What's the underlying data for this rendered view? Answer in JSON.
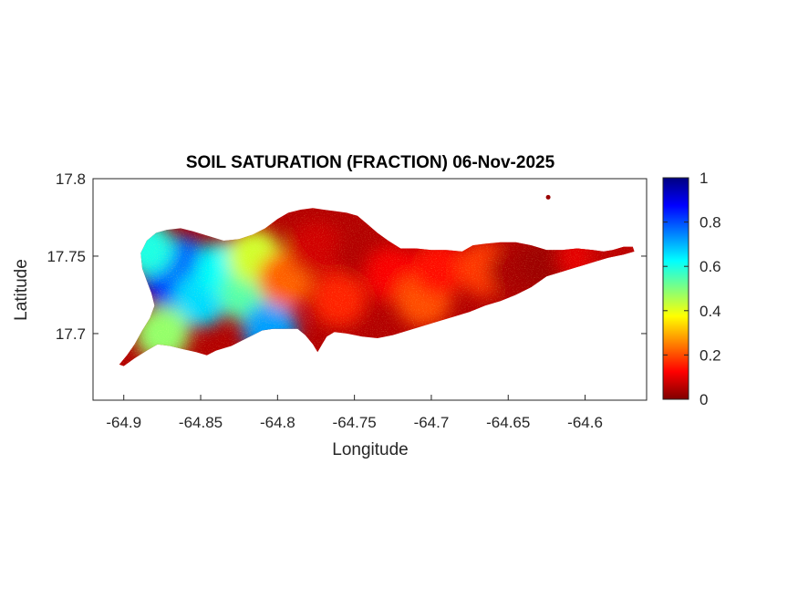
{
  "chart_data": {
    "type": "heatmap",
    "title": "SOIL SATURATION (FRACTION) 06-Nov-2025",
    "xlabel": "Longitude",
    "ylabel": "Latitude",
    "xlim": [
      -64.92,
      -64.56
    ],
    "ylim": [
      17.657,
      17.8
    ],
    "x_ticks": [
      -64.9,
      -64.85,
      -64.8,
      -64.75,
      -64.7,
      -64.65,
      -64.6
    ],
    "x_tick_labels": [
      "-64.9",
      "-64.85",
      "-64.8",
      "-64.75",
      "-64.7",
      "-64.65",
      "-64.6"
    ],
    "y_ticks": [
      17.7,
      17.75,
      17.8
    ],
    "y_tick_labels": [
      "17.7",
      "17.75",
      "17.8"
    ],
    "colormap": "jet",
    "colorbar": {
      "range": [
        0,
        1
      ],
      "ticks": [
        0,
        0.2,
        0.4,
        0.6,
        0.8,
        1
      ],
      "tick_labels": [
        "0",
        "0.2",
        "0.4",
        "0.6",
        "0.8",
        "1"
      ]
    },
    "region_outline": [
      [
        -64.9,
        17.679
      ],
      [
        -64.893,
        17.684
      ],
      [
        -64.885,
        17.689
      ],
      [
        -64.878,
        17.693
      ],
      [
        -64.87,
        17.692
      ],
      [
        -64.862,
        17.69
      ],
      [
        -64.853,
        17.688
      ],
      [
        -64.846,
        17.686
      ],
      [
        -64.84,
        17.689
      ],
      [
        -64.83,
        17.692
      ],
      [
        -64.82,
        17.697
      ],
      [
        -64.81,
        17.702
      ],
      [
        -64.803,
        17.703
      ],
      [
        -64.795,
        17.703
      ],
      [
        -64.787,
        17.703
      ],
      [
        -64.782,
        17.699
      ],
      [
        -64.777,
        17.693
      ],
      [
        -64.774,
        17.688
      ],
      [
        -64.771,
        17.693
      ],
      [
        -64.768,
        17.698
      ],
      [
        -64.763,
        17.701
      ],
      [
        -64.755,
        17.7
      ],
      [
        -64.745,
        17.698
      ],
      [
        -64.735,
        17.697
      ],
      [
        -64.725,
        17.699
      ],
      [
        -64.715,
        17.702
      ],
      [
        -64.705,
        17.705
      ],
      [
        -64.695,
        17.708
      ],
      [
        -64.685,
        17.711
      ],
      [
        -64.675,
        17.714
      ],
      [
        -64.665,
        17.718
      ],
      [
        -64.655,
        17.721
      ],
      [
        -64.645,
        17.725
      ],
      [
        -64.635,
        17.73
      ],
      [
        -64.625,
        17.737
      ],
      [
        -64.615,
        17.74
      ],
      [
        -64.605,
        17.743
      ],
      [
        -64.595,
        17.746
      ],
      [
        -64.585,
        17.749
      ],
      [
        -64.575,
        17.751
      ],
      [
        -64.568,
        17.753
      ],
      [
        -64.569,
        17.756
      ],
      [
        -64.575,
        17.756
      ],
      [
        -64.582,
        17.754
      ],
      [
        -64.588,
        17.753
      ],
      [
        -64.595,
        17.754
      ],
      [
        -64.605,
        17.755
      ],
      [
        -64.615,
        17.754
      ],
      [
        -64.625,
        17.754
      ],
      [
        -64.635,
        17.757
      ],
      [
        -64.645,
        17.759
      ],
      [
        -64.655,
        17.759
      ],
      [
        -64.665,
        17.758
      ],
      [
        -64.673,
        17.757
      ],
      [
        -64.68,
        17.753
      ],
      [
        -64.69,
        17.754
      ],
      [
        -64.7,
        17.754
      ],
      [
        -64.71,
        17.755
      ],
      [
        -64.72,
        17.755
      ],
      [
        -64.728,
        17.76
      ],
      [
        -64.735,
        17.765
      ],
      [
        -64.742,
        17.771
      ],
      [
        -64.748,
        17.776
      ],
      [
        -64.755,
        17.778
      ],
      [
        -64.762,
        17.779
      ],
      [
        -64.77,
        17.78
      ],
      [
        -64.777,
        17.781
      ],
      [
        -64.785,
        17.78
      ],
      [
        -64.793,
        17.778
      ],
      [
        -64.8,
        17.774
      ],
      [
        -64.808,
        17.768
      ],
      [
        -64.816,
        17.764
      ],
      [
        -64.825,
        17.761
      ],
      [
        -64.835,
        17.76
      ],
      [
        -64.845,
        17.763
      ],
      [
        -64.855,
        17.766
      ],
      [
        -64.863,
        17.768
      ],
      [
        -64.872,
        17.767
      ],
      [
        -64.879,
        17.765
      ],
      [
        -64.885,
        17.76
      ],
      [
        -64.889,
        17.752
      ],
      [
        -64.888,
        17.742
      ],
      [
        -64.885,
        17.734
      ],
      [
        -64.882,
        17.726
      ],
      [
        -64.88,
        17.718
      ],
      [
        -64.883,
        17.71
      ],
      [
        -64.888,
        17.702
      ],
      [
        -64.893,
        17.693
      ],
      [
        -64.898,
        17.686
      ],
      [
        -64.903,
        17.68
      ]
    ],
    "islet": [
      -64.624,
      17.788
    ],
    "saturation_zones": [
      {
        "lon": -64.87,
        "lat": 17.735,
        "value": 0.85
      },
      {
        "lon": -64.862,
        "lat": 17.745,
        "value": 0.78
      },
      {
        "lon": -64.85,
        "lat": 17.722,
        "value": 0.66
      },
      {
        "lon": -64.835,
        "lat": 17.742,
        "value": 0.62
      },
      {
        "lon": -64.885,
        "lat": 17.755,
        "value": 0.6
      },
      {
        "lon": -64.82,
        "lat": 17.725,
        "value": 0.54
      },
      {
        "lon": -64.805,
        "lat": 17.703,
        "value": 0.72
      },
      {
        "lon": -64.815,
        "lat": 17.75,
        "value": 0.42
      },
      {
        "lon": -64.875,
        "lat": 17.7,
        "value": 0.48
      },
      {
        "lon": -64.795,
        "lat": 17.735,
        "value": 0.22
      },
      {
        "lon": -64.775,
        "lat": 17.755,
        "value": 0.08
      },
      {
        "lon": -64.76,
        "lat": 17.722,
        "value": 0.16
      },
      {
        "lon": -64.745,
        "lat": 17.752,
        "value": 0.05
      },
      {
        "lon": -64.725,
        "lat": 17.738,
        "value": 0.12
      },
      {
        "lon": -64.705,
        "lat": 17.722,
        "value": 0.2
      },
      {
        "lon": -64.695,
        "lat": 17.742,
        "value": 0.14
      },
      {
        "lon": -64.665,
        "lat": 17.742,
        "value": 0.18
      },
      {
        "lon": -64.645,
        "lat": 17.74,
        "value": 0.04
      },
      {
        "lon": -64.625,
        "lat": 17.745,
        "value": 0.03
      },
      {
        "lon": -64.6,
        "lat": 17.75,
        "value": 0.1
      },
      {
        "lon": -64.58,
        "lat": 17.752,
        "value": 0.06
      }
    ]
  }
}
